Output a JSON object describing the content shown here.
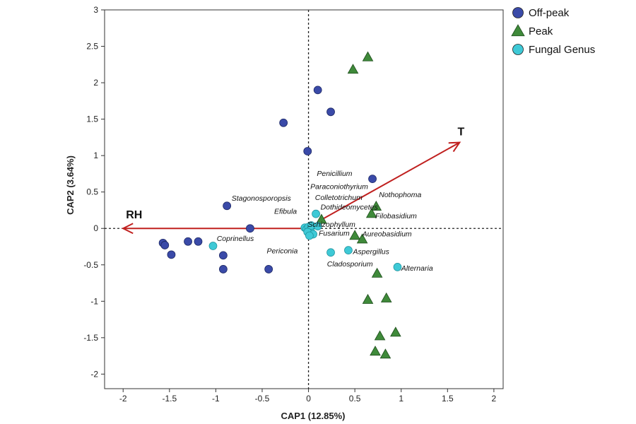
{
  "chart_data": {
    "type": "scatter",
    "xlabel": "CAP1 (12.85%)",
    "ylabel": "CAP2 (3.64%)",
    "xlim": [
      -2.2,
      2.1
    ],
    "ylim": [
      -2.2,
      3.0
    ],
    "xticks": [
      -2,
      -1.5,
      -1,
      -0.5,
      0,
      0.5,
      1,
      1.5,
      2
    ],
    "yticks": [
      -2,
      -1.5,
      -1,
      -0.5,
      0,
      0.5,
      1,
      1.5,
      2,
      2.5,
      3
    ],
    "reference_lines": {
      "x": 0,
      "y": 0,
      "style": "dotted"
    },
    "grid": false,
    "legend_position": "top-right outside",
    "colors": {
      "offpeak": "#3a4aa8",
      "peak": "#3f8a3a",
      "genus": "#3ec9d6",
      "vector": "#c0201f"
    },
    "series": [
      {
        "name": "Off-peak",
        "marker": "circle",
        "points": [
          [
            0.1,
            1.9
          ],
          [
            0.24,
            1.6
          ],
          [
            -0.27,
            1.45
          ],
          [
            -0.01,
            1.06
          ],
          [
            0.69,
            0.68
          ],
          [
            -0.88,
            0.31
          ],
          [
            -0.63,
            0.0
          ],
          [
            -1.57,
            -0.2
          ],
          [
            -1.55,
            -0.23
          ],
          [
            -1.48,
            -0.36
          ],
          [
            -1.3,
            -0.18
          ],
          [
            -1.19,
            -0.18
          ],
          [
            -0.92,
            -0.37
          ],
          [
            -0.92,
            -0.56
          ],
          [
            -0.43,
            -0.56
          ]
        ]
      },
      {
        "name": "Peak",
        "marker": "triangle",
        "points": [
          [
            0.64,
            2.35
          ],
          [
            0.48,
            2.18
          ],
          [
            0.14,
            0.12
          ],
          [
            0.73,
            0.3
          ],
          [
            0.68,
            0.2
          ],
          [
            0.5,
            -0.1
          ],
          [
            0.58,
            -0.15
          ],
          [
            0.74,
            -0.62
          ],
          [
            0.84,
            -0.96
          ],
          [
            0.64,
            -0.98
          ],
          [
            0.94,
            -1.43
          ],
          [
            0.77,
            -1.48
          ],
          [
            0.72,
            -1.69
          ],
          [
            0.83,
            -1.73
          ]
        ]
      },
      {
        "name": "Fungal Genus",
        "marker": "circle",
        "points": [
          {
            "x": -0.04,
            "y": 0.01,
            "label": ""
          },
          {
            "x": -0.02,
            "y": -0.01,
            "label": ""
          },
          {
            "x": 0.0,
            "y": 0.02,
            "label": ""
          },
          {
            "x": 0.02,
            "y": -0.02,
            "label": ""
          },
          {
            "x": 0.03,
            "y": 0.04,
            "label": ""
          },
          {
            "x": -0.01,
            "y": -0.05,
            "label": ""
          },
          {
            "x": 0.05,
            "y": -0.08,
            "label": ""
          },
          {
            "x": 0.01,
            "y": -0.1,
            "label": ""
          },
          {
            "x": 0.08,
            "y": 0.2,
            "label": ""
          },
          {
            "x": 0.1,
            "y": 0.03,
            "label": ""
          },
          {
            "x": -1.03,
            "y": -0.24,
            "label": "Coprinellus"
          },
          {
            "x": 0.24,
            "y": -0.33,
            "label": "Periconia"
          },
          {
            "x": 0.43,
            "y": -0.3,
            "label": "Aspergillus"
          },
          {
            "x": 0.96,
            "y": -0.53,
            "label": "Alternaria"
          }
        ]
      }
    ],
    "annotations": [
      {
        "text": "Penicillium",
        "x": 0.09,
        "y": 0.72
      },
      {
        "text": "Paraconiothyrium",
        "x": 0.02,
        "y": 0.54
      },
      {
        "text": "Nothophoma",
        "x": 0.76,
        "y": 0.43
      },
      {
        "text": "Stagonosporopsis",
        "x": -0.83,
        "y": 0.38
      },
      {
        "text": "Colletotrichum",
        "x": 0.07,
        "y": 0.39
      },
      {
        "text": "Dothideomycetes",
        "x": 0.13,
        "y": 0.26
      },
      {
        "text": "Filobasidium",
        "x": 0.72,
        "y": 0.14
      },
      {
        "text": "Efibula",
        "x": -0.37,
        "y": 0.2
      },
      {
        "text": "Schizophyllum",
        "x": -0.01,
        "y": 0.02
      },
      {
        "text": "Fusarium",
        "x": 0.11,
        "y": -0.1
      },
      {
        "text": "Aureobasidium",
        "x": 0.58,
        "y": -0.11
      },
      {
        "text": "Coprinellus",
        "x": -0.99,
        "y": -0.17
      },
      {
        "text": "Periconia",
        "x": -0.45,
        "y": -0.34
      },
      {
        "text": "Aspergillus",
        "x": 0.48,
        "y": -0.35
      },
      {
        "text": "Cladosporium",
        "x": 0.2,
        "y": -0.52
      },
      {
        "text": "Alternaria",
        "x": 1.0,
        "y": -0.58
      }
    ],
    "vectors": [
      {
        "label": "T",
        "x1": 0.14,
        "y1": 0.12,
        "x2": 1.63,
        "y2": 1.18
      },
      {
        "label": "RH",
        "x1": 0.0,
        "y1": 0.0,
        "x2": -2.0,
        "y2": 0.0
      }
    ],
    "legend": [
      {
        "label": "Off-peak",
        "marker": "circle",
        "color": "#3a4aa8"
      },
      {
        "label": "Peak",
        "marker": "triangle",
        "color": "#3f8a3a"
      },
      {
        "label": "Fungal Genus",
        "marker": "circle",
        "color": "#3ec9d6"
      }
    ]
  }
}
